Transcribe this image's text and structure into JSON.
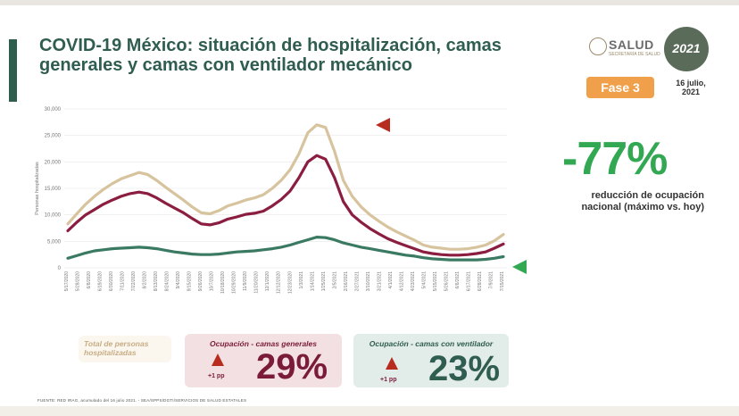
{
  "header": {
    "title_line1": "COVID-19 México: situación de hospitalización, camas",
    "title_line2": "generales y camas con ventilador mecánico"
  },
  "logos": {
    "salud": "SALUD",
    "salud_sub": "SECRETARÍA DE SALUD",
    "year": "2021"
  },
  "status": {
    "fase": "Fase 3",
    "date_line1": "16 julio,",
    "date_line2": "2021"
  },
  "kpi": {
    "value": "-77%",
    "note_line1": "reducción de ocupación",
    "note_line2": "nacional (máximo vs. hoy)"
  },
  "cards": {
    "total_label_line1": "Total de personas",
    "total_label_line2": "hospitalizadas",
    "general_label": "Ocupación - camas generales",
    "general_change": "+1 pp",
    "general_value": "29%",
    "vent_label": "Ocupación - camas con ventilador",
    "vent_change": "+1 pp",
    "vent_value": "23%"
  },
  "footer": {
    "source": "FUENTE: RED IRAG, acumulado del 16 julio 2021. - SEA/SPPS/DGTI/SERVICIOS DE SALUD ESTATALES"
  },
  "colors": {
    "total": "#d7c49e",
    "general": "#8b1e40",
    "ventilator": "#3a7a62",
    "accent_green": "#33a852",
    "accent_red": "#b82b1f"
  },
  "chart_data": {
    "type": "line",
    "ylabel": "Personas hospitalizadas",
    "ylim": [
      0,
      30000
    ],
    "y_ticks": [
      "0",
      "5,000",
      "10,000",
      "15,000",
      "20,000",
      "25,000",
      "30,000"
    ],
    "x_tick_labels": [
      "5/17/2020",
      "5/28/2020",
      "6/8/2020",
      "6/19/2020",
      "6/30/2020",
      "7/11/2020",
      "7/22/2020",
      "8/2/2020",
      "8/13/2020",
      "8/24/2020",
      "9/4/2020",
      "9/15/2020",
      "9/26/2020",
      "10/7/2020",
      "10/18/2020",
      "10/29/2020",
      "11/9/2020",
      "11/20/2020",
      "12/1/2020",
      "12/12/2020",
      "12/23/2020",
      "1/3/2021",
      "1/14/2021",
      "1/25/2021",
      "2/5/2021",
      "2/16/2021",
      "2/27/2021",
      "3/10/2021",
      "3/21/2021",
      "4/1/2021",
      "4/12/2021",
      "4/23/2021",
      "5/4/2021",
      "5/15/2021",
      "5/26/2021",
      "6/6/2021",
      "6/17/2021",
      "6/28/2021",
      "7/9/2021",
      "7/15/2021"
    ],
    "series": [
      {
        "name": "Total de personas hospitalizadas",
        "values": [
          8300,
          10200,
          12000,
          13500,
          14800,
          15900,
          16800,
          17400,
          18000,
          17600,
          16500,
          15200,
          14000,
          12800,
          11500,
          10400,
          10200,
          10800,
          11700,
          12200,
          12800,
          13200,
          13800,
          15000,
          16500,
          18500,
          21500,
          25500,
          27000,
          26500,
          22000,
          16500,
          13500,
          11500,
          10000,
          8800,
          7700,
          6800,
          6000,
          5200,
          4300,
          3900,
          3700,
          3500,
          3500,
          3600,
          3900,
          4300,
          5100,
          6300
        ]
      },
      {
        "name": "Ocupación - camas generales",
        "values": [
          7000,
          8600,
          10000,
          11000,
          12000,
          12800,
          13500,
          14000,
          14300,
          14000,
          13200,
          12200,
          11300,
          10400,
          9300,
          8300,
          8100,
          8500,
          9200,
          9600,
          10100,
          10300,
          10700,
          11700,
          12900,
          14500,
          17000,
          20000,
          21200,
          20500,
          17000,
          12500,
          10000,
          8600,
          7400,
          6400,
          5500,
          4800,
          4200,
          3600,
          3000,
          2700,
          2500,
          2400,
          2400,
          2500,
          2700,
          3000,
          3700,
          4500
        ]
      },
      {
        "name": "Ocupación - camas con ventilador",
        "values": [
          1800,
          2300,
          2800,
          3200,
          3400,
          3600,
          3700,
          3800,
          3900,
          3800,
          3600,
          3300,
          3000,
          2800,
          2600,
          2500,
          2500,
          2600,
          2800,
          3000,
          3100,
          3200,
          3400,
          3600,
          3900,
          4300,
          4800,
          5300,
          5800,
          5700,
          5300,
          4700,
          4300,
          3900,
          3600,
          3300,
          3000,
          2700,
          2400,
          2200,
          1900,
          1700,
          1600,
          1500,
          1500,
          1500,
          1500,
          1600,
          1800,
          2100
        ]
      }
    ],
    "grid": true,
    "legend": "cards-below"
  }
}
